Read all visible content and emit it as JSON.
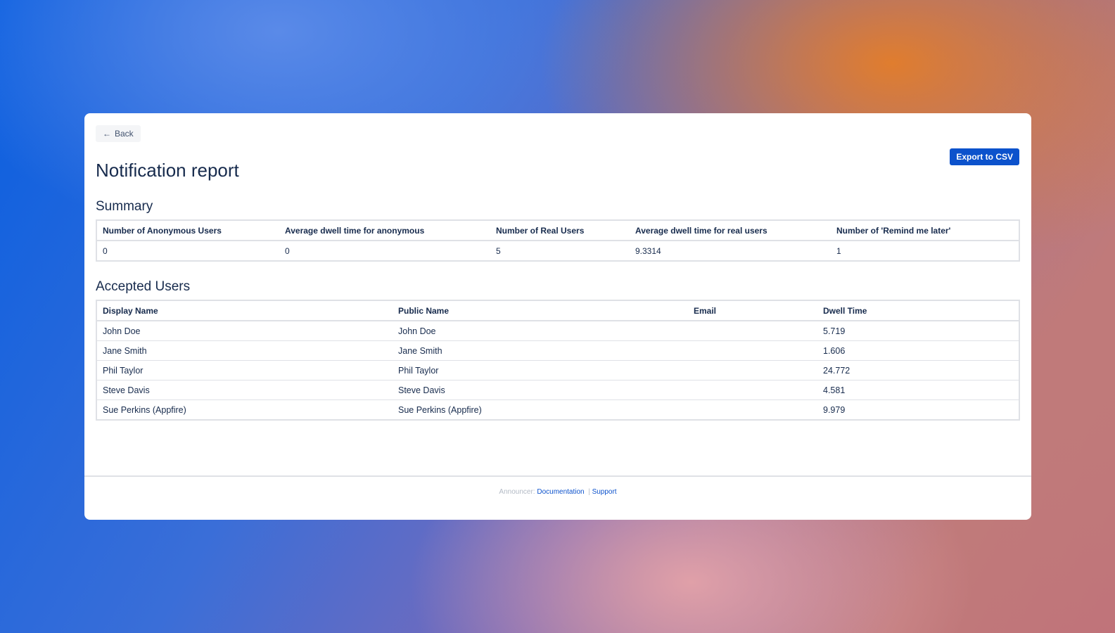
{
  "back_label": "Back",
  "export_label": "Export to CSV",
  "title": "Notification report",
  "summary": {
    "heading": "Summary",
    "headers": [
      "Number of Anonymous Users",
      "Average dwell time for anonymous",
      "Number of Real Users",
      "Average dwell time for real users",
      "Number of 'Remind me later'"
    ],
    "values": [
      "0",
      "0",
      "5",
      "9.3314",
      "1"
    ]
  },
  "accepted": {
    "heading": "Accepted Users",
    "headers": [
      "Display Name",
      "Public Name",
      "Email",
      "Dwell Time"
    ],
    "rows": [
      [
        "John Doe",
        "John Doe",
        "",
        "5.719"
      ],
      [
        "Jane Smith",
        "Jane Smith",
        "",
        "1.606"
      ],
      [
        "Phil Taylor",
        "Phil Taylor",
        "",
        "24.772"
      ],
      [
        "Steve Davis",
        "Steve Davis",
        "",
        "4.581"
      ],
      [
        "Sue Perkins (Appfire)",
        "Sue Perkins (Appfire)",
        "",
        "9.979"
      ]
    ]
  },
  "footer": {
    "prefix": "Announcer:",
    "documentation": "Documentation",
    "separator": "|",
    "support": "Support"
  },
  "colors": {
    "accent": "#0c52cc",
    "text": "#172b4d"
  }
}
